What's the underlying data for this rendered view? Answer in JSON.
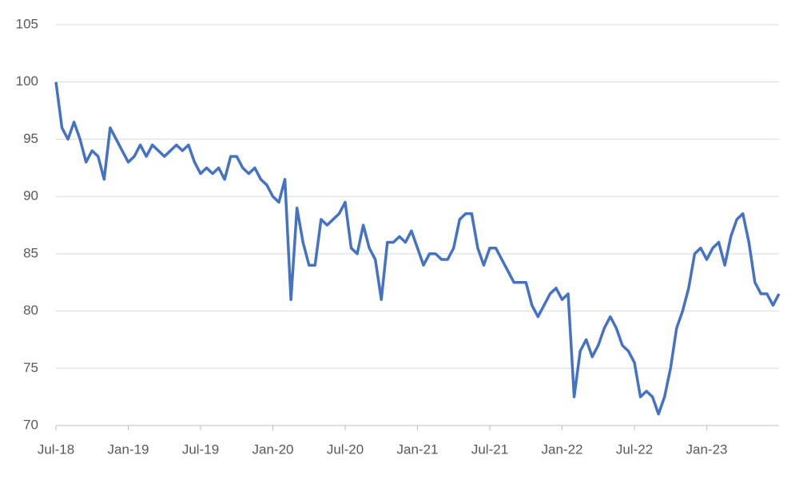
{
  "chart_data": {
    "type": "line",
    "categories": [
      "Jul-18",
      null,
      null,
      null,
      null,
      null,
      null,
      null,
      null,
      null,
      null,
      null,
      "Jan-19",
      null,
      null,
      null,
      null,
      null,
      null,
      null,
      null,
      null,
      null,
      null,
      "Jul-19",
      null,
      null,
      null,
      null,
      null,
      null,
      null,
      null,
      null,
      null,
      null,
      "Jan-20",
      null,
      null,
      null,
      null,
      null,
      null,
      null,
      null,
      null,
      null,
      null,
      "Jul-20",
      null,
      null,
      null,
      null,
      null,
      null,
      null,
      null,
      null,
      null,
      null,
      "Jan-21",
      null,
      null,
      null,
      null,
      null,
      null,
      null,
      null,
      null,
      null,
      null,
      "Jul-21",
      null,
      null,
      null,
      null,
      null,
      null,
      null,
      null,
      null,
      null,
      null,
      "Jan-22",
      null,
      null,
      null,
      null,
      null,
      null,
      null,
      null,
      null,
      null,
      null,
      "Jul-22",
      null,
      null,
      null,
      null,
      null,
      null,
      null,
      null,
      null,
      null,
      null,
      "Jan-23",
      null,
      null,
      null,
      null,
      null,
      null,
      null,
      null,
      null,
      null,
      null,
      null
    ],
    "values": [
      100,
      96,
      95,
      96.5,
      95,
      93,
      94,
      93.5,
      91.5,
      96,
      95,
      94,
      93,
      93.5,
      94.5,
      93.5,
      94.5,
      94,
      93.5,
      94,
      94.5,
      94,
      94.5,
      93,
      92,
      92.5,
      92,
      92.5,
      91.5,
      93.5,
      93.5,
      92.5,
      92,
      92.5,
      91.5,
      91,
      90,
      89.5,
      91.5,
      81,
      89,
      86,
      84,
      84,
      88,
      87.5,
      88,
      88.5,
      89.5,
      85.5,
      85,
      87.5,
      85.5,
      84.5,
      81,
      86,
      86,
      86.5,
      86,
      87,
      85.5,
      84,
      85,
      85,
      84.5,
      84.5,
      85.5,
      88,
      88.5,
      88.5,
      85.5,
      84,
      85.5,
      85.5,
      84.5,
      83.5,
      82.5,
      82.5,
      82.5,
      80.5,
      79.5,
      80.5,
      81.5,
      82,
      81,
      81.5,
      72.5,
      76.5,
      77.5,
      76,
      77,
      78.5,
      79.5,
      78.5,
      77,
      76.5,
      75.5,
      72.5,
      73,
      72.5,
      71,
      72.5,
      75,
      78.5,
      80,
      82,
      85,
      85.5,
      84.5,
      85.5,
      86,
      84,
      86.5,
      88,
      88.5,
      86,
      82.5,
      81.5,
      81.5,
      80.5,
      81.5
    ],
    "color": "#4472c4",
    "ylim": [
      70,
      105
    ],
    "yticks": [
      70,
      75,
      80,
      85,
      90,
      95,
      100,
      105
    ],
    "grid": true
  }
}
